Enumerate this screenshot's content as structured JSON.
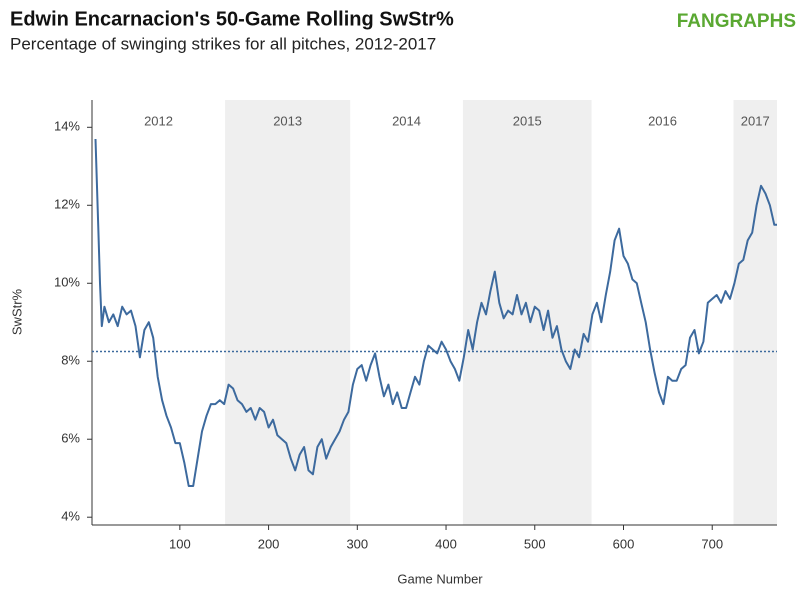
{
  "chart_data": {
    "type": "line",
    "title": "Edwin Encarnacion's 50-Game Rolling SwStr%",
    "subtitle": "Percentage of swinging strikes for all pitches, 2012-2017",
    "logo": "FANGRAPHS",
    "x_label": "Game Number",
    "y_label": "SwStr%",
    "xlim": [
      1,
      773
    ],
    "ylim": [
      3.8,
      14.7
    ],
    "xticks": [
      100,
      200,
      300,
      400,
      500,
      600,
      700
    ],
    "yticks": [
      {
        "value": 4,
        "label": "4%"
      },
      {
        "value": 6,
        "label": "6%"
      },
      {
        "value": 8,
        "label": "8%"
      },
      {
        "value": 10,
        "label": "10%"
      },
      {
        "value": 12,
        "label": "12%"
      },
      {
        "value": 14,
        "label": "14%"
      }
    ],
    "reference_line": 8.25,
    "seasons": [
      {
        "label": "2012",
        "start": 1,
        "end": 151
      },
      {
        "label": "2013",
        "start": 151,
        "end": 292
      },
      {
        "label": "2014",
        "start": 292,
        "end": 419
      },
      {
        "label": "2015",
        "start": 419,
        "end": 564
      },
      {
        "label": "2016",
        "start": 564,
        "end": 724
      },
      {
        "label": "2017",
        "start": 724,
        "end": 773
      }
    ],
    "series": [
      {
        "color": "#3d6a9e",
        "x": [
          5,
          8,
          10,
          12,
          15,
          20,
          25,
          30,
          35,
          40,
          45,
          50,
          55,
          60,
          65,
          70,
          75,
          80,
          85,
          90,
          95,
          100,
          105,
          110,
          115,
          120,
          125,
          130,
          135,
          140,
          145,
          150,
          155,
          160,
          165,
          170,
          175,
          180,
          185,
          190,
          195,
          200,
          205,
          210,
          215,
          220,
          225,
          230,
          235,
          240,
          245,
          250,
          255,
          260,
          265,
          270,
          275,
          280,
          285,
          290,
          295,
          300,
          305,
          310,
          315,
          320,
          325,
          330,
          335,
          340,
          345,
          350,
          355,
          360,
          365,
          370,
          375,
          380,
          385,
          390,
          395,
          400,
          405,
          410,
          415,
          420,
          425,
          430,
          435,
          440,
          445,
          450,
          455,
          460,
          465,
          470,
          475,
          480,
          485,
          490,
          495,
          500,
          505,
          510,
          515,
          520,
          525,
          530,
          535,
          540,
          545,
          550,
          555,
          560,
          565,
          570,
          575,
          580,
          585,
          590,
          595,
          600,
          605,
          610,
          615,
          620,
          625,
          630,
          635,
          640,
          645,
          650,
          655,
          660,
          665,
          670,
          675,
          680,
          685,
          690,
          695,
          700,
          705,
          710,
          715,
          720,
          725,
          730,
          735,
          740,
          745,
          750,
          755,
          760,
          765,
          770,
          773
        ],
        "values": [
          13.7,
          11.5,
          10.0,
          8.9,
          9.4,
          9.0,
          9.2,
          8.9,
          9.4,
          9.2,
          9.3,
          8.9,
          8.1,
          8.8,
          9.0,
          8.6,
          7.6,
          7.0,
          6.6,
          6.3,
          5.9,
          5.9,
          5.4,
          4.8,
          4.8,
          5.5,
          6.2,
          6.6,
          6.9,
          6.9,
          7.0,
          6.9,
          7.4,
          7.3,
          7.0,
          6.9,
          6.7,
          6.8,
          6.5,
          6.8,
          6.7,
          6.3,
          6.5,
          6.1,
          6.0,
          5.9,
          5.5,
          5.2,
          5.6,
          5.8,
          5.2,
          5.1,
          5.8,
          6.0,
          5.5,
          5.8,
          6.0,
          6.2,
          6.5,
          6.7,
          7.4,
          7.8,
          7.9,
          7.5,
          7.9,
          8.2,
          7.6,
          7.1,
          7.4,
          6.9,
          7.2,
          6.8,
          6.8,
          7.2,
          7.6,
          7.4,
          8.0,
          8.4,
          8.3,
          8.2,
          8.5,
          8.3,
          8.0,
          7.8,
          7.5,
          8.1,
          8.8,
          8.3,
          9.0,
          9.5,
          9.2,
          9.8,
          10.3,
          9.5,
          9.1,
          9.3,
          9.2,
          9.7,
          9.2,
          9.5,
          9.0,
          9.4,
          9.3,
          8.8,
          9.3,
          8.6,
          8.9,
          8.3,
          8.0,
          7.8,
          8.3,
          8.1,
          8.7,
          8.5,
          9.2,
          9.5,
          9.0,
          9.7,
          10.3,
          11.1,
          11.4,
          10.7,
          10.5,
          10.1,
          10.0,
          9.5,
          9.0,
          8.3,
          7.7,
          7.2,
          6.9,
          7.6,
          7.5,
          7.5,
          7.8,
          7.9,
          8.6,
          8.8,
          8.2,
          8.5,
          9.5,
          9.6,
          9.7,
          9.5,
          9.8,
          9.6,
          10.0,
          10.5,
          10.6,
          11.1,
          11.3,
          12.0,
          12.5,
          12.3,
          12.0,
          11.5,
          11.5
        ]
      }
    ]
  }
}
